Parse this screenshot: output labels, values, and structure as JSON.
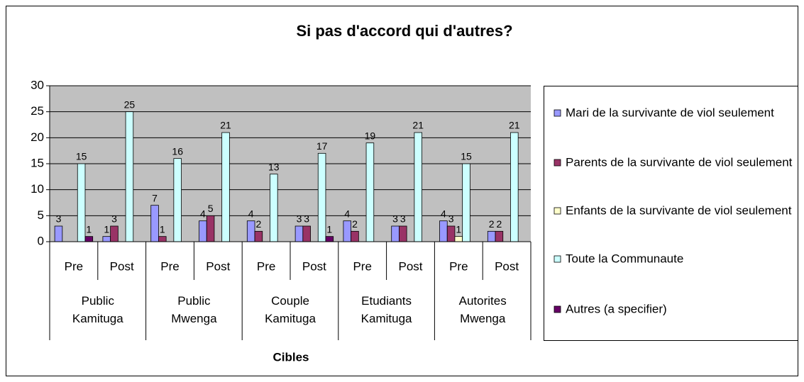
{
  "chart_data": {
    "type": "bar",
    "title": "Si pas d'accord qui d'autres?",
    "x_label": "Cibles",
    "categories": [
      "Pre",
      "Post",
      "Pre",
      "Post",
      "Pre",
      "Post",
      "Pre",
      "Post",
      "Pre",
      "Post"
    ],
    "groups": [
      "Public Kamituga",
      "Public Mwenga",
      "Couple Kamituga",
      "Etudiants Kamituga",
      "Autorites Mwenga"
    ],
    "series": [
      {
        "name": "Mari de la survivante de viol seulement",
        "color": "#9999ff",
        "values": [
          3,
          1,
          7,
          4,
          4,
          3,
          4,
          3,
          4,
          2
        ]
      },
      {
        "name": "Parents de la survivante de viol seulement",
        "color": "#993366",
        "values": [
          null,
          3,
          1,
          5,
          2,
          3,
          2,
          3,
          3,
          2
        ]
      },
      {
        "name": "Enfants de la survivante de viol seulement",
        "color": "#ffffcc",
        "values": [
          null,
          null,
          null,
          null,
          null,
          null,
          null,
          null,
          1,
          null
        ]
      },
      {
        "name": "Toute la Communaute",
        "color": "#ccffff",
        "values": [
          15,
          25,
          16,
          21,
          13,
          17,
          19,
          21,
          15,
          21
        ]
      },
      {
        "name": "Autres (a specifier)",
        "color": "#660066",
        "values": [
          1,
          null,
          null,
          null,
          null,
          1,
          null,
          null,
          null,
          null
        ]
      }
    ],
    "ylim": [
      0,
      30
    ],
    "yticks": [
      0,
      5,
      10,
      15,
      20,
      25,
      30
    ],
    "grid": true,
    "legend": "right"
  }
}
